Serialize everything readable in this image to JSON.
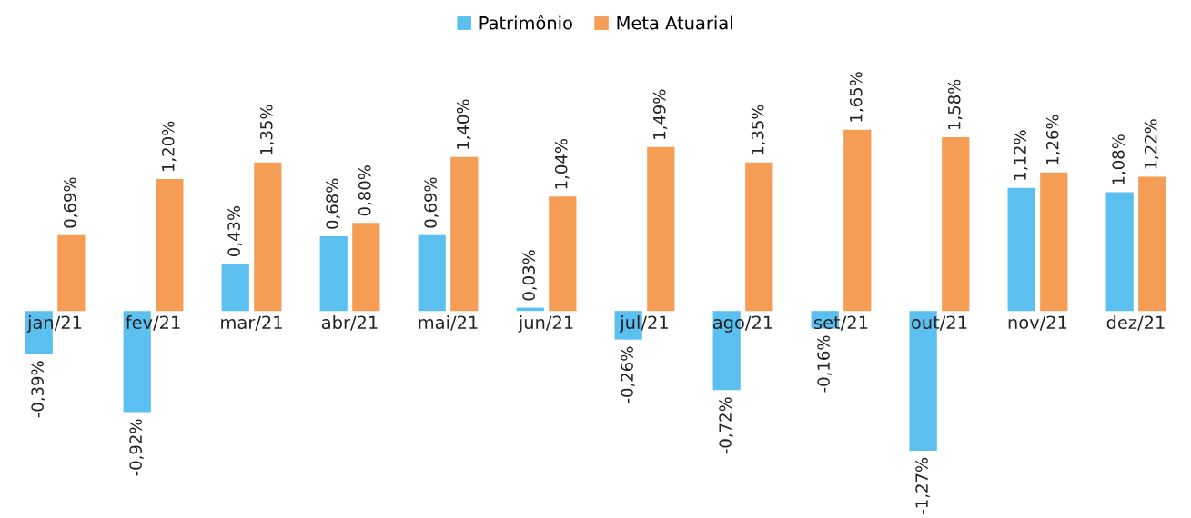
{
  "chart_data": {
    "type": "bar",
    "categories": [
      "jan/21",
      "fev/21",
      "mar/21",
      "abr/21",
      "mai/21",
      "jun/21",
      "jul/21",
      "ago/21",
      "set/21",
      "out/21",
      "nov/21",
      "dez/21"
    ],
    "series": [
      {
        "name": "Patrimônio",
        "color": "#5bbff0",
        "values": [
          -0.39,
          -0.92,
          0.43,
          0.68,
          0.69,
          0.03,
          -0.26,
          -0.72,
          -0.16,
          -1.27,
          1.12,
          1.08
        ],
        "value_labels": [
          "-0,39%",
          "-0,92%",
          "0,43%",
          "0,68%",
          "0,69%",
          "0,03%",
          "-0,26%",
          "-0,72%",
          "-0,16%",
          "-1,27%",
          "1,12%",
          "1,08%"
        ]
      },
      {
        "name": "Meta Atuarial",
        "color": "#f59d55",
        "values": [
          0.69,
          1.2,
          1.35,
          0.8,
          1.4,
          1.04,
          1.49,
          1.35,
          1.65,
          1.58,
          1.26,
          1.22
        ],
        "value_labels": [
          "0,69%",
          "1,20%",
          "1,35%",
          "0,80%",
          "1,40%",
          "1,04%",
          "1,49%",
          "1,35%",
          "1,65%",
          "1,58%",
          "1,26%",
          "1,22%"
        ]
      }
    ],
    "tick_labels": "x",
    "grid": false,
    "legend": "top"
  }
}
